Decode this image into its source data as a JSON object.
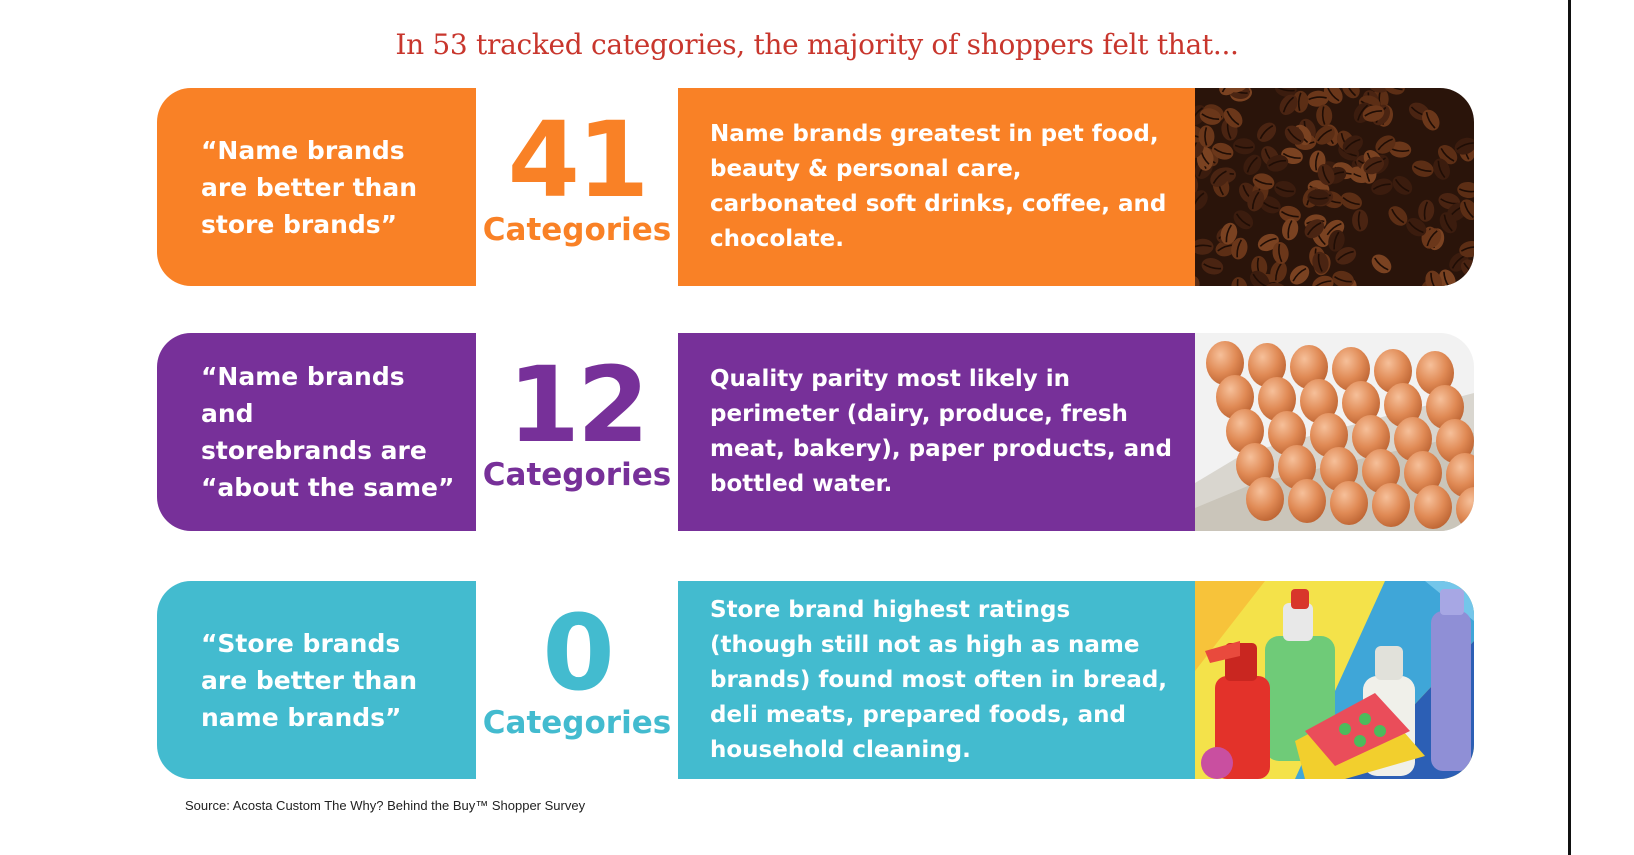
{
  "headline": "In 53 tracked categories, the majority of shoppers felt that...",
  "colors": {
    "orange": "#f98126",
    "purple": "#773099",
    "teal": "#43bbcf",
    "headline": "#c8362d"
  },
  "rows": [
    {
      "quote": "“Name brands\nare better than\nstore brands”",
      "count": "41",
      "unit": "Categories",
      "detail": "Name brands greatest in pet food, beauty & personal care, carbonated soft drinks, coffee, and chocolate.",
      "image": "coffee-beans-photo"
    },
    {
      "quote": "“Name brands and\nstorebrands are\n“about the same”",
      "count": "12",
      "unit": "Categories",
      "detail": "Quality parity most likely in perimeter (dairy, produce, fresh meat, bakery), paper products, and bottled water.",
      "image": "eggs-in-carton-photo"
    },
    {
      "quote": "“Store brands\nare better than\nname brands”",
      "count": "0",
      "unit": "Categories",
      "detail": "Store brand highest ratings (though still not as high as name brands) found most often in bread, deli meats, prepared foods, and household cleaning.",
      "image": "cleaning-products-photo"
    }
  ],
  "source": "Source: Acosta Custom The Why? Behind the Buy™ Shopper Survey"
}
